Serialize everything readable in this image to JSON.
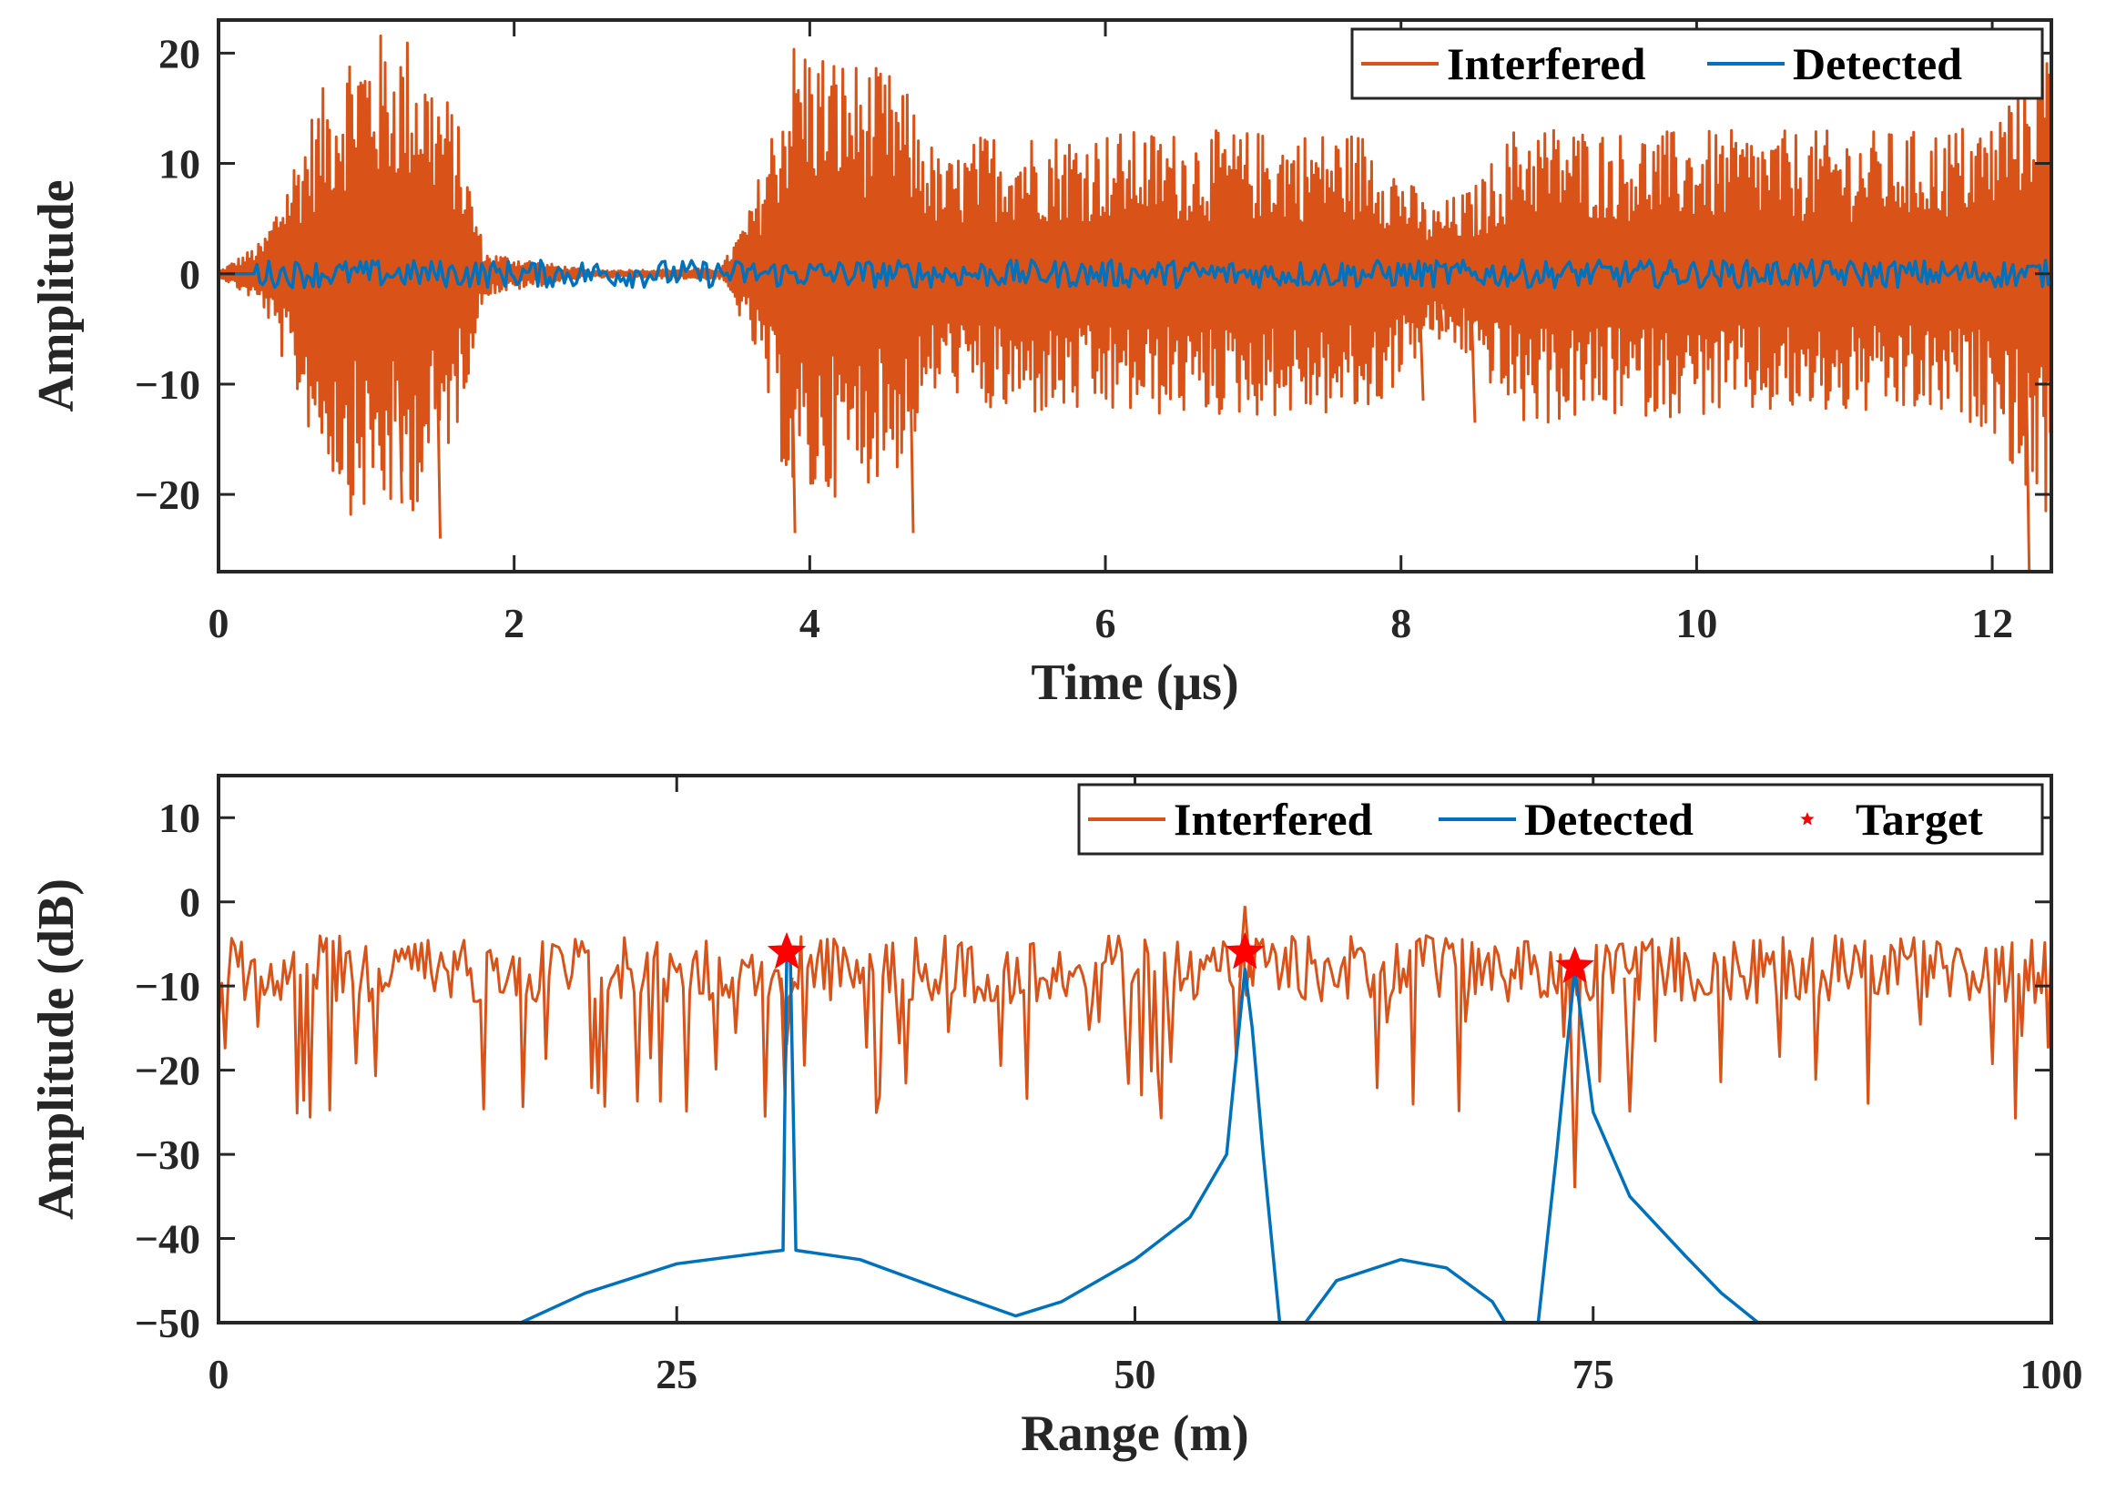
{
  "chart_data": [
    {
      "type": "line",
      "xlabel": "Time (μs)",
      "ylabel": "Amplitude",
      "xlim": [
        0,
        12.4
      ],
      "ylim": [
        -27,
        23
      ],
      "xticks": [
        0,
        2,
        4,
        6,
        8,
        10,
        12
      ],
      "xtick_labels": [
        "0",
        "2",
        "4",
        "6",
        "8",
        "10",
        "12"
      ],
      "yticks": [
        -20,
        -10,
        0,
        10,
        20
      ],
      "ytick_labels": [
        "−20",
        "−10",
        "0",
        "10",
        "20"
      ],
      "legend": {
        "position": "top-right",
        "entries": [
          "Interfered",
          "Detected"
        ]
      },
      "series": [
        {
          "name": "Interfered",
          "color": "#D95319",
          "style": "dense oscillating signal (bursts of interference)",
          "envelope": [
            [
              0.0,
              0.2
            ],
            [
              0.3,
              3
            ],
            [
              0.6,
              14
            ],
            [
              0.9,
              22
            ],
            [
              1.3,
              22
            ],
            [
              1.6,
              15
            ],
            [
              1.8,
              2
            ],
            [
              2.5,
              0.3
            ],
            [
              3.4,
              0.5
            ],
            [
              3.6,
              6
            ],
            [
              3.9,
              22
            ],
            [
              4.2,
              20
            ],
            [
              4.6,
              18
            ],
            [
              4.9,
              10
            ],
            [
              5.2,
              13
            ],
            [
              6.0,
              13
            ],
            [
              7.0,
              13
            ],
            [
              7.8,
              13
            ],
            [
              8.2,
              6
            ],
            [
              8.5,
              8
            ],
            [
              8.8,
              14
            ],
            [
              9.5,
              13
            ],
            [
              10.5,
              13
            ],
            [
              11.5,
              13
            ],
            [
              12.0,
              14
            ],
            [
              12.3,
              22
            ],
            [
              12.4,
              22
            ]
          ],
          "extra_points": [
            [
              1.24,
              -20.8
            ],
            [
              1.5,
              -24
            ],
            [
              3.9,
              -23.5
            ],
            [
              4.7,
              -23.5
            ],
            [
              8.15,
              -11.5
            ],
            [
              8.28,
              -5.2
            ],
            [
              8.5,
              -13.5
            ],
            [
              12.25,
              -27
            ],
            [
              12.4,
              -12
            ]
          ]
        },
        {
          "name": "Detected",
          "color": "#0072BD",
          "style": "low-amplitude noise around 0",
          "amplitude_range": [
            -1.5,
            1.5
          ]
        }
      ]
    },
    {
      "type": "line",
      "xlabel": "Range (m)",
      "ylabel": "Amplitude (dB)",
      "xlim": [
        0,
        100
      ],
      "ylim": [
        -50,
        15
      ],
      "xticks": [
        0,
        25,
        50,
        75,
        100
      ],
      "xtick_labels": [
        "0",
        "25",
        "50",
        "75",
        "100"
      ],
      "yticks": [
        -50,
        -40,
        -30,
        -20,
        -10,
        0,
        10
      ],
      "ytick_labels": [
        "−50",
        "−40",
        "−30",
        "−20",
        "−10",
        "0",
        "10"
      ],
      "legend": {
        "position": "top-right",
        "entries": [
          "Interfered",
          "Detected",
          "Target"
        ]
      },
      "series": [
        {
          "name": "Interfered",
          "color": "#D95319",
          "style": "noise floor spectrum",
          "range_db": [
            -26,
            -1
          ],
          "spikes": [
            [
              31,
              -17
            ],
            [
              56,
              -0.5
            ],
            [
              74,
              -34
            ],
            [
              77,
              -25
            ]
          ]
        },
        {
          "name": "Detected",
          "color": "#0072BD",
          "points": [
            [
              16.5,
              -50
            ],
            [
              20,
              -46.5
            ],
            [
              25,
              -43
            ],
            [
              30,
              -41.6
            ],
            [
              30.8,
              -41.4
            ],
            [
              31,
              -7
            ],
            [
              31.2,
              -7
            ],
            [
              31.5,
              -41.4
            ],
            [
              35,
              -42.5
            ],
            [
              40,
              -46.5
            ],
            [
              43.5,
              -49.2
            ],
            [
              46,
              -47.5
            ],
            [
              50,
              -42.5
            ],
            [
              53,
              -37.5
            ],
            [
              55,
              -30
            ],
            [
              56,
              -8
            ],
            [
              56.4,
              -15
            ],
            [
              57,
              -30
            ],
            [
              57.9,
              -50
            ],
            [
              59.3,
              -50
            ],
            [
              61,
              -45
            ],
            [
              64.5,
              -42.5
            ],
            [
              67,
              -43.5
            ],
            [
              69.5,
              -47.5
            ],
            [
              70.2,
              -50
            ],
            [
              72,
              -50
            ],
            [
              73,
              -30
            ],
            [
              74,
              -8
            ],
            [
              75,
              -25
            ],
            [
              77,
              -35
            ],
            [
              80,
              -42
            ],
            [
              82,
              -46.5
            ],
            [
              84,
              -50
            ]
          ]
        },
        {
          "name": "Target",
          "color": "#FF0000",
          "marker": "star",
          "points": [
            [
              31,
              -6
            ],
            [
              56,
              -6
            ],
            [
              74,
              -7.7
            ]
          ]
        }
      ]
    }
  ]
}
